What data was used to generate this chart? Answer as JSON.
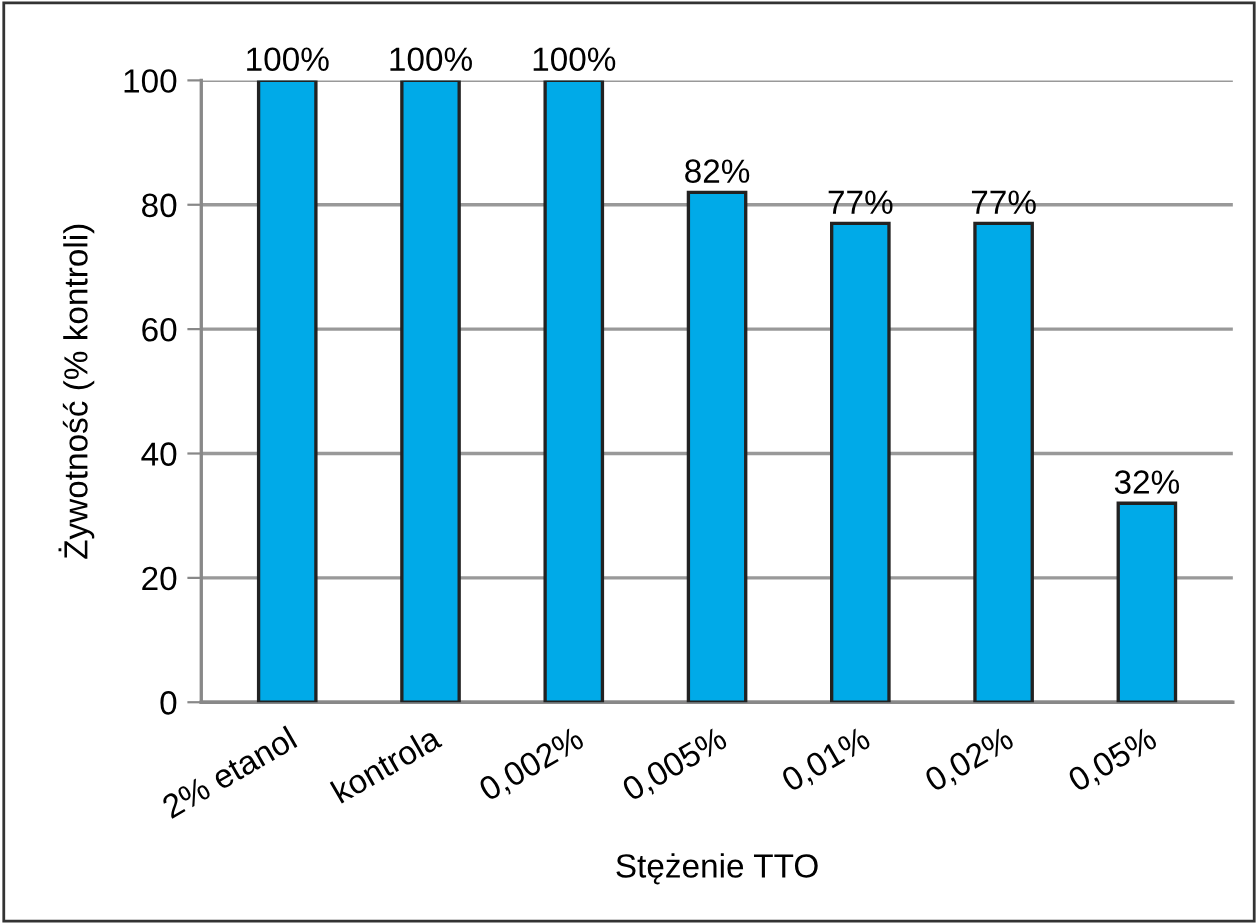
{
  "chart_data": {
    "type": "bar",
    "xlabel": "Stężenie TTO",
    "ylabel": "Żywotność (% kontroli)",
    "categories": [
      "2% etanol",
      "kontrola",
      "0,002%",
      "0,005%",
      "0,01%",
      "0,02%",
      "0,05%"
    ],
    "values": [
      100,
      100,
      100,
      82,
      77,
      77,
      32
    ],
    "value_labels": [
      "100%",
      "100%",
      "100%",
      "82%",
      "77%",
      "77%",
      "32%"
    ],
    "color": "#00aae8",
    "ylim": [
      0,
      100
    ],
    "yticks": [
      0,
      20,
      40,
      60,
      80,
      100
    ],
    "grid": "y"
  }
}
